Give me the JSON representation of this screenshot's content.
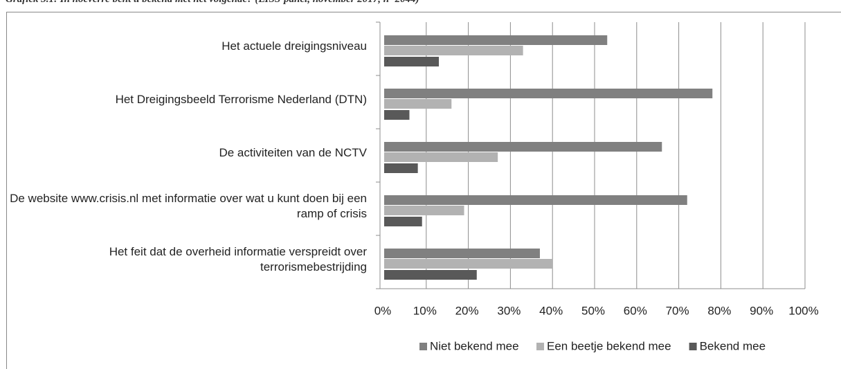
{
  "chart_data": {
    "type": "barh",
    "title": "Grafiek 3.1: In hoeverre bent u bekend met het volgende? (LISS-panel, november 2017, n=2044)",
    "categories": [
      "Het actuele dreigingsniveau",
      "Het Dreigingsbeeld Terrorisme Nederland (DTN)",
      "De activiteiten van de NCTV",
      "De website www.crisis.nl met informatie over wat u kunt doen bij een ramp of crisis",
      "Het feit dat de overheid informatie verspreidt over terrorismebestrijding"
    ],
    "series": [
      {
        "name": "Niet bekend mee",
        "color": "#808080",
        "values": [
          53,
          78,
          66,
          72,
          37
        ]
      },
      {
        "name": "Een beetje bekend mee",
        "color": "#b2b2b2",
        "values": [
          33,
          16,
          27,
          19,
          40
        ]
      },
      {
        "name": "Bekend mee",
        "color": "#595959",
        "values": [
          13,
          6,
          8,
          9,
          22
        ]
      }
    ],
    "xlim": [
      0,
      100
    ],
    "xticks": [
      {
        "value": 0,
        "label": "0%"
      },
      {
        "value": 10,
        "label": "10%"
      },
      {
        "value": 20,
        "label": "20%"
      },
      {
        "value": 30,
        "label": "30%"
      },
      {
        "value": 40,
        "label": "40%"
      },
      {
        "value": 50,
        "label": "50%"
      },
      {
        "value": 60,
        "label": "60%"
      },
      {
        "value": 70,
        "label": "70%"
      },
      {
        "value": 80,
        "label": "80%"
      },
      {
        "value": 90,
        "label": "90%"
      },
      {
        "value": 100,
        "label": "100%"
      }
    ],
    "grid": true,
    "legend": "bottom"
  }
}
